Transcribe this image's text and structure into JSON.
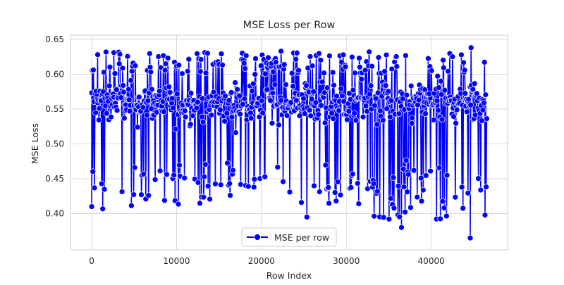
{
  "chart_data": {
    "type": "line",
    "title": "MSE Loss per Row",
    "xlabel": "Row Index",
    "ylabel": "MSE Loss",
    "xlim": [
      -2500,
      49000
    ],
    "ylim": [
      0.348,
      0.656
    ],
    "x_ticks": [
      0,
      10000,
      20000,
      30000,
      40000
    ],
    "x_tick_labels": [
      "0",
      "10000",
      "20000",
      "30000",
      "40000"
    ],
    "y_ticks": [
      0.4,
      0.45,
      0.5,
      0.55,
      0.6,
      0.65
    ],
    "y_tick_labels": [
      "0.40",
      "0.45",
      "0.50",
      "0.55",
      "0.60",
      "0.65"
    ],
    "grid": true,
    "legend_position": "lower center",
    "series": [
      {
        "name": "MSE per row",
        "color": "#0000ff",
        "marker": "circle",
        "marker_edge_color": "#ffffff",
        "x_range": [
          0,
          46600
        ],
        "n_points_approx": 46600,
        "band_min": 0.365,
        "band_max": 0.638,
        "dense_core_range": [
          0.5,
          0.6
        ],
        "notable_points": [
          {
            "x": 0,
            "y": 0.41
          },
          {
            "x": 700,
            "y": 0.628
          },
          {
            "x": 2600,
            "y": 0.631
          },
          {
            "x": 22300,
            "y": 0.633
          },
          {
            "x": 44700,
            "y": 0.638
          },
          {
            "x": 44600,
            "y": 0.365
          },
          {
            "x": 36500,
            "y": 0.38
          }
        ]
      }
    ]
  }
}
